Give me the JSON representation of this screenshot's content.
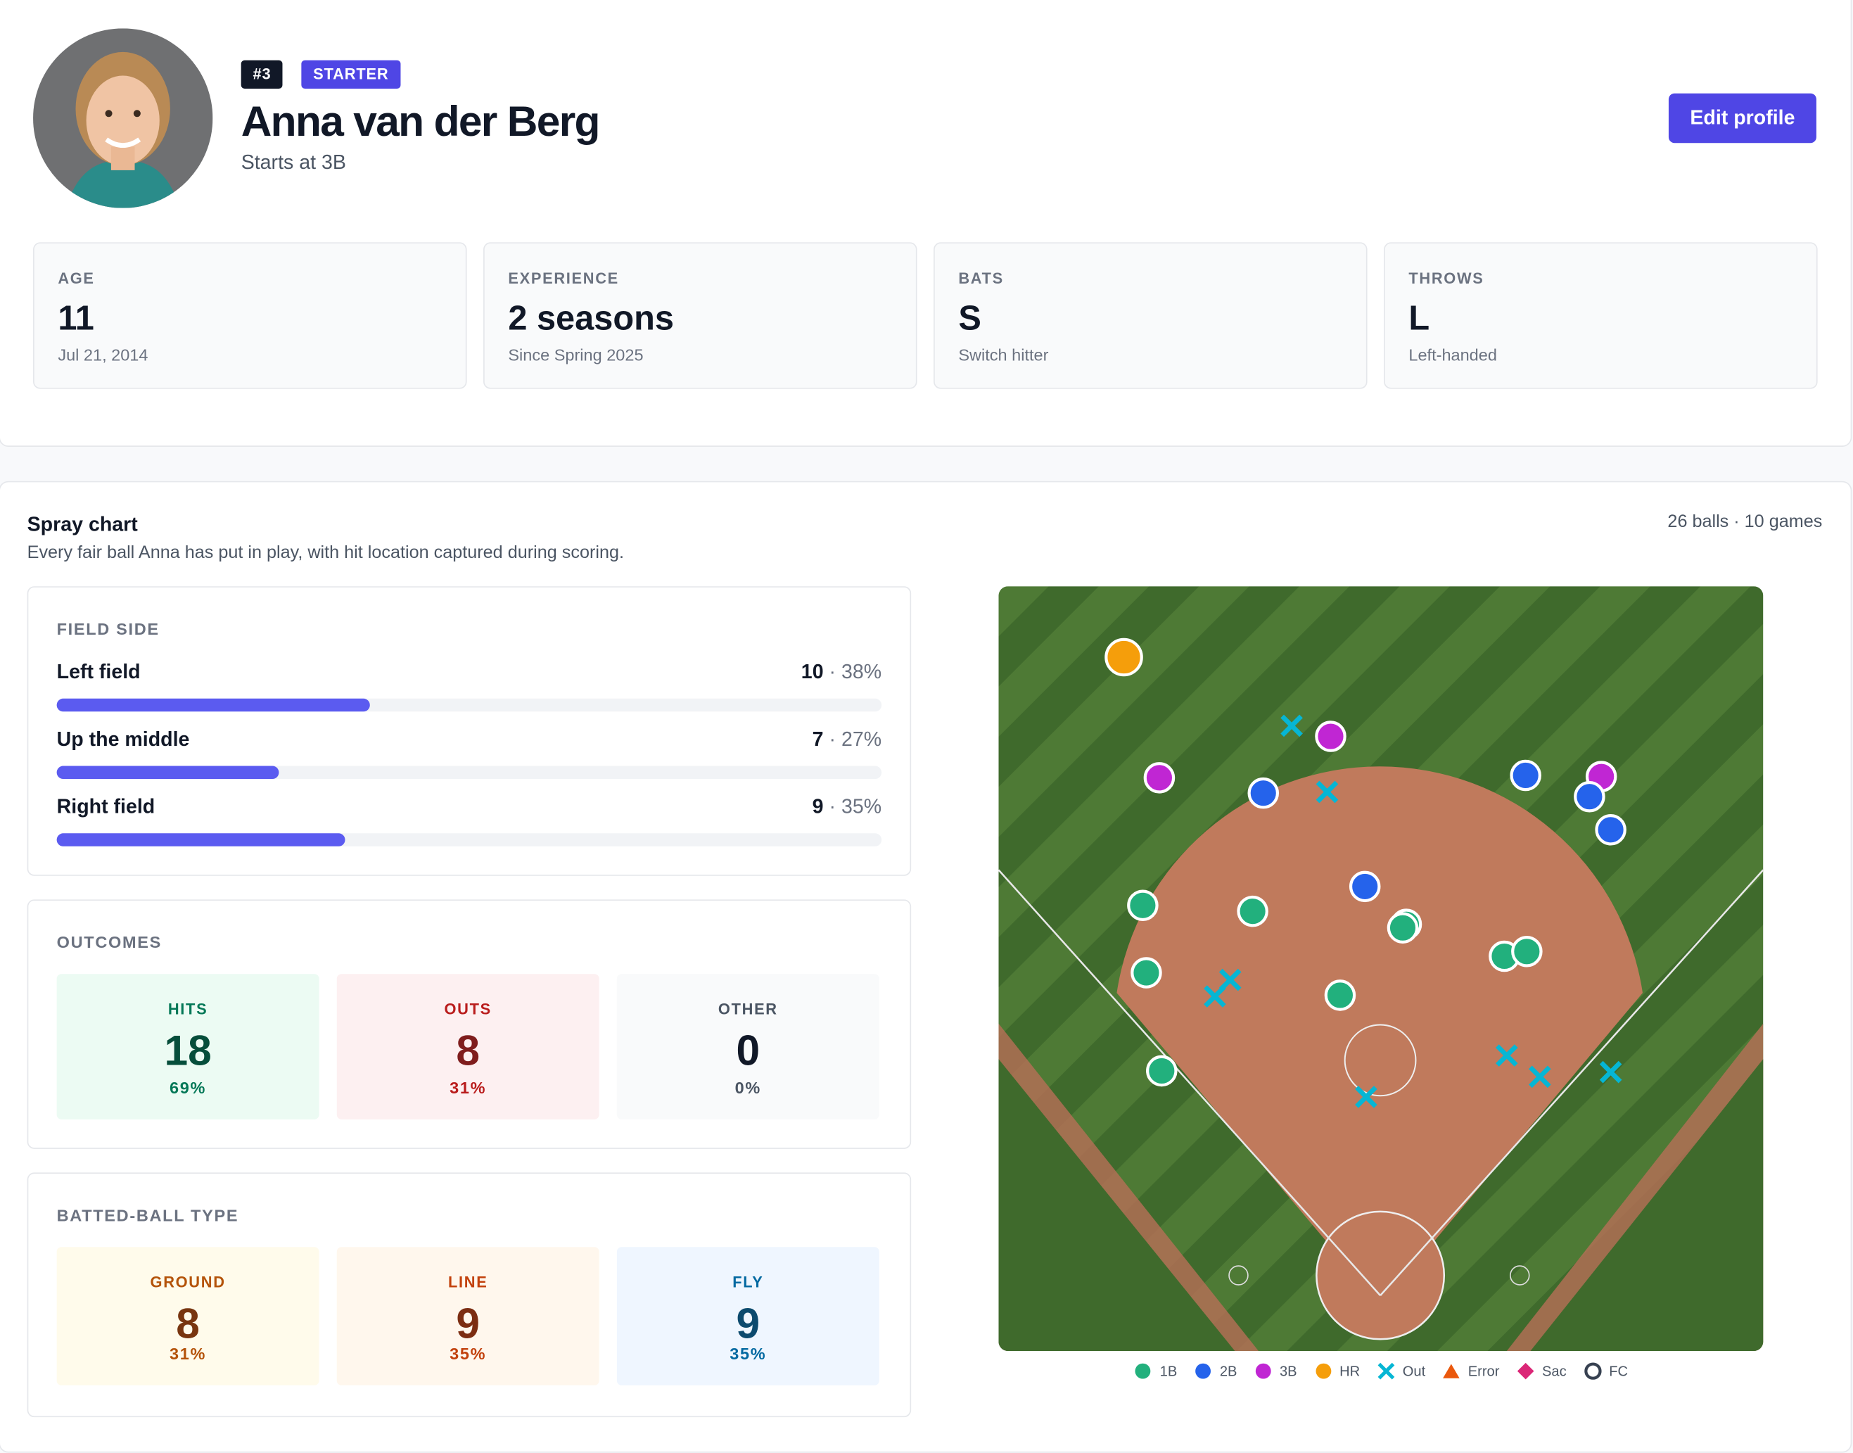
{
  "profile": {
    "number": "#3",
    "role": "STARTER",
    "name": "Anna van der Berg",
    "position": "Starts at 3B",
    "action": "Edit profile"
  },
  "stats": [
    {
      "label": "AGE",
      "value": "11",
      "sub": "Jul 21, 2014"
    },
    {
      "label": "EXPERIENCE",
      "value": "2 seasons",
      "sub": "Since Spring 2025"
    },
    {
      "label": "BATS",
      "value": "S",
      "sub": "Switch hitter"
    },
    {
      "label": "THROWS",
      "value": "L",
      "sub": "Left-handed"
    }
  ],
  "spray": {
    "title": "Spray chart",
    "subtitle": "Every fair ball Anna has put in play, with hit location captured during scoring.",
    "summary": "26 balls · 10 games",
    "field_side": {
      "title": "FIELD SIDE",
      "rows": [
        {
          "label": "Left field",
          "count": 10,
          "share": "· 38%",
          "percent": 38
        },
        {
          "label": "Up the middle",
          "count": 7,
          "share": "· 27%",
          "percent": 27
        },
        {
          "label": "Right field",
          "count": 9,
          "share": "· 35%",
          "percent": 35
        }
      ]
    },
    "outcomes": {
      "title": "OUTCOMES",
      "tiles": [
        {
          "label": "HITS",
          "value": 18,
          "percent": "69%"
        },
        {
          "label": "OUTS",
          "value": 8,
          "percent": "31%"
        },
        {
          "label": "OTHER",
          "value": 0,
          "percent": "0%"
        }
      ]
    },
    "batted": {
      "title": "BATTED-BALL TYPE",
      "tiles": [
        {
          "label": "GROUND",
          "value": 8,
          "percent": "31%"
        },
        {
          "label": "LINE",
          "value": 9,
          "percent": "35%"
        },
        {
          "label": "FLY",
          "value": 9,
          "percent": "35%"
        }
      ]
    },
    "legend": [
      {
        "label": "1B",
        "marker": "circle",
        "color": "#22b07d"
      },
      {
        "label": "2B",
        "marker": "circle",
        "color": "#2563eb"
      },
      {
        "label": "3B",
        "marker": "circle",
        "color": "#c026d3"
      },
      {
        "label": "HR",
        "marker": "circle",
        "color": "#f59e0b"
      },
      {
        "label": "Out",
        "marker": "cross",
        "color": "#06b6d4"
      },
      {
        "label": "Error",
        "marker": "triangle",
        "color": "#ea580c"
      },
      {
        "label": "Sac",
        "marker": "diamond",
        "color": "#db2777"
      },
      {
        "label": "FC",
        "marker": "ring",
        "color": "#374151"
      }
    ]
  }
}
